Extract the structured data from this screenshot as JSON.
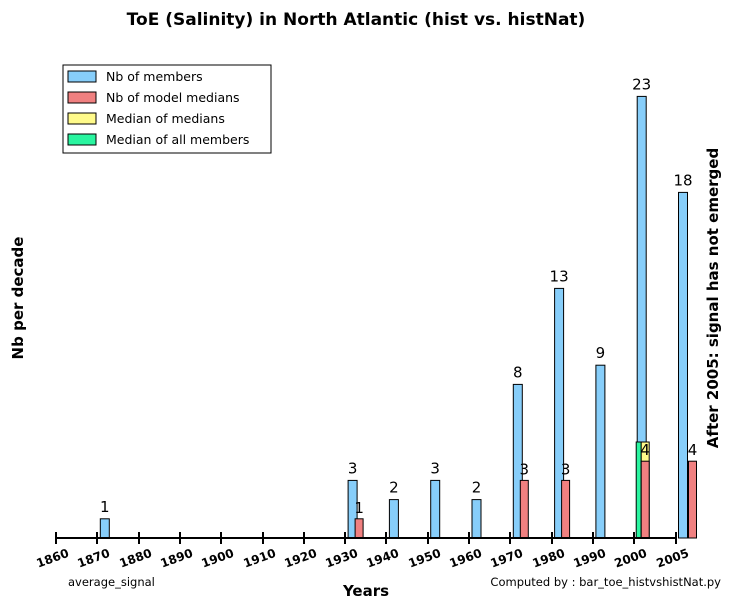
{
  "chart_data": {
    "type": "bar",
    "title": "ToE (Salinity) in North Atlantic (hist vs. histNat)",
    "xlabel": "Years",
    "ylabel": "Nb per decade",
    "right_label": "After 2005: signal has not emerged",
    "ticks": [
      "1860",
      "1870",
      "1880",
      "1890",
      "1900",
      "1910",
      "1920",
      "1930",
      "1940",
      "1950",
      "1960",
      "1970",
      "1980",
      "1990",
      "2000",
      "2005"
    ],
    "ylim": [
      0,
      25
    ],
    "grid": false,
    "legend_position": "top-left",
    "series": [
      {
        "name": "Nb of members",
        "color": "#87cefa",
        "values": [
          null,
          1,
          0,
          0,
          0,
          0,
          0,
          3,
          2,
          3,
          2,
          8,
          13,
          9,
          23,
          18
        ]
      },
      {
        "name": "Nb of model medians",
        "color": "#f08080",
        "values": [
          null,
          0,
          0,
          0,
          0,
          0,
          0,
          1,
          0,
          0,
          0,
          3,
          3,
          0,
          4,
          4
        ]
      },
      {
        "name": "Median of medians",
        "color": "#fffa8a",
        "values": [
          null,
          0,
          0,
          0,
          0,
          0,
          0,
          0,
          0,
          0,
          0,
          0,
          0,
          0,
          5,
          0
        ]
      },
      {
        "name": "Median of all members",
        "color": "#2af5a0",
        "values": [
          null,
          0,
          0,
          0,
          0,
          0,
          0,
          0,
          0,
          0,
          0,
          0,
          0,
          0,
          5,
          0
        ]
      }
    ],
    "annotations": {
      "bottom_left": "average_signal",
      "bottom_right": "Computed by : bar_toe_histvshistNat.py"
    }
  }
}
